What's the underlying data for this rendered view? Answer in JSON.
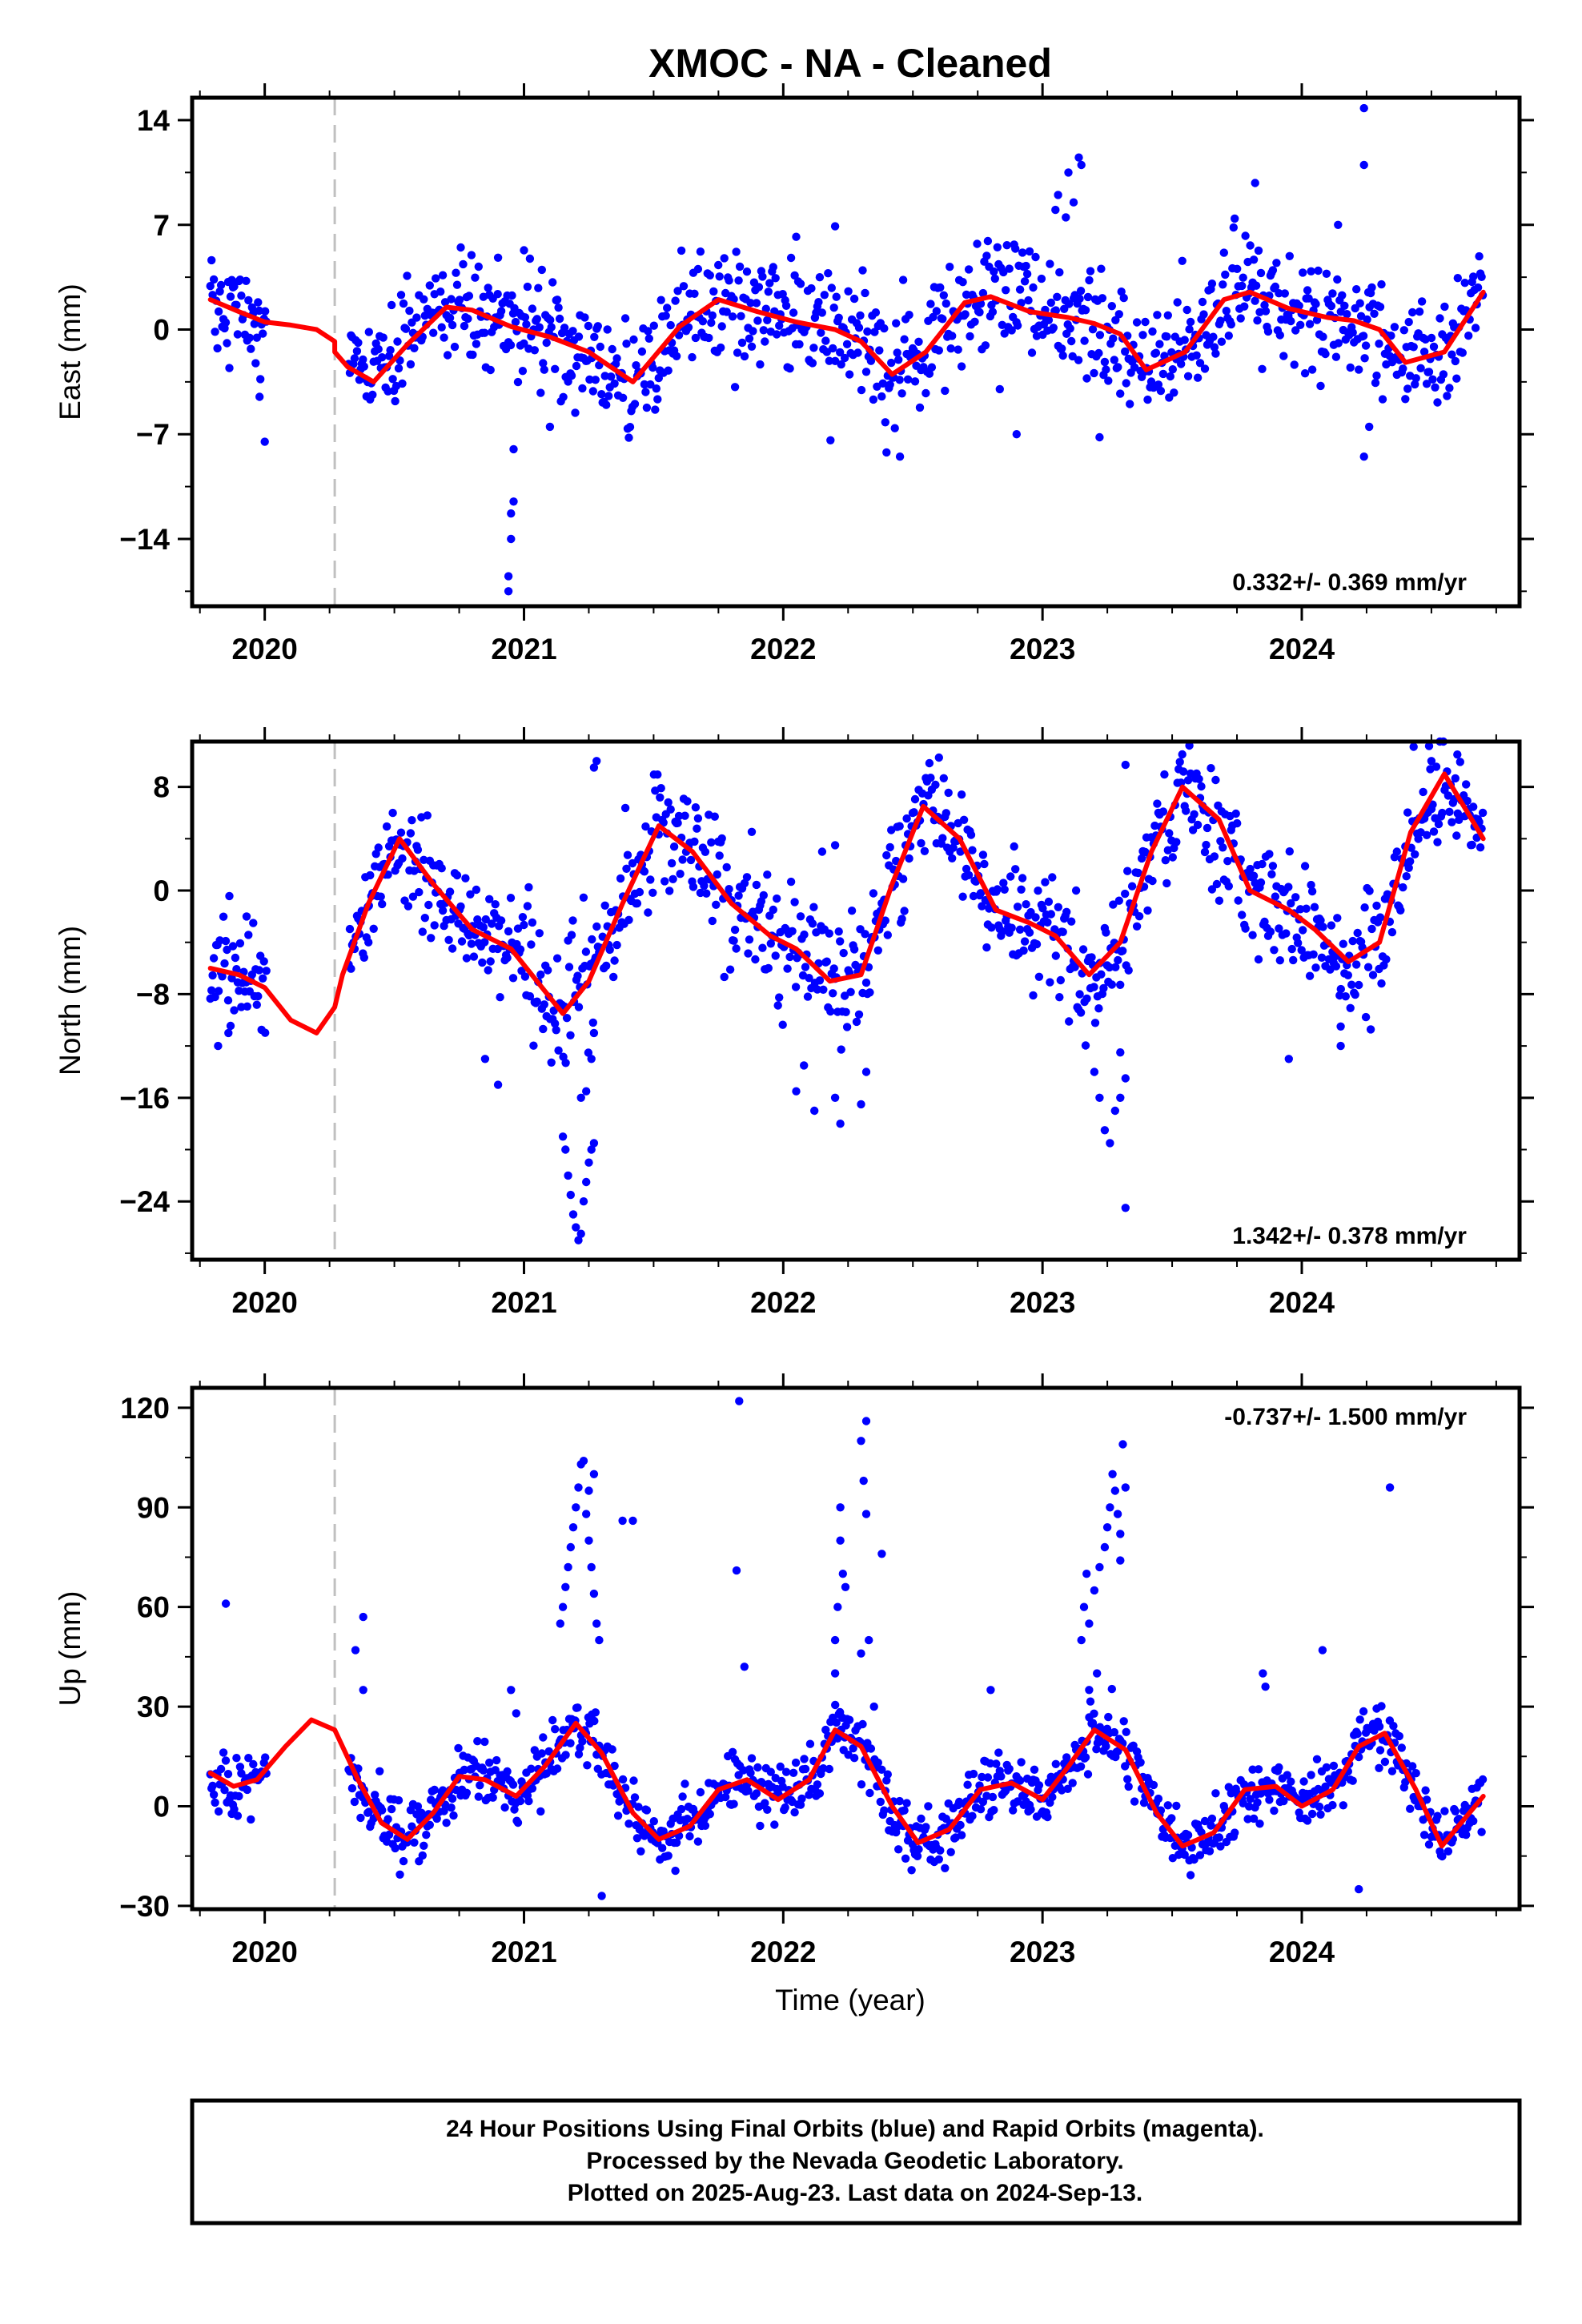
{
  "title": "XMOC  - NA - Cleaned",
  "xlabel": "Time (year)",
  "footer": [
    "24 Hour Positions Using Final Orbits (blue) and Rapid Orbits (magenta).",
    "Processed by the Nevada Geodetic Laboratory.",
    "Plotted on 2025-Aug-23. Last data on 2024-Sep-13."
  ],
  "colors": {
    "points": "#0000ff",
    "fit": "#ff0000",
    "equipment_change": "#c0c0c0",
    "axes": "#000000"
  },
  "chart_data": [
    {
      "type": "scatter",
      "component": "east",
      "ylabel": "East (mm)",
      "rate_label": "0.332+/- 0.369 mm/yr",
      "rate_position": "bottom-right",
      "xlim": [
        2019.72,
        2024.84
      ],
      "ylim": [
        -18.5,
        15.5
      ],
      "xticks": [
        2020,
        2021,
        2022,
        2023,
        2024
      ],
      "xticklabels": [
        "2020",
        "2021",
        "2022",
        "2023",
        "2024"
      ],
      "yticks": [
        14,
        7,
        0,
        -7,
        -14
      ],
      "yticklabels": [
        "14",
        "7",
        "0",
        "-7",
        "-14"
      ],
      "equipment_change": 2020.27,
      "data_start": 2019.79,
      "data_end": 2024.7,
      "gaps": [
        [
          2020.01,
          2020.32
        ]
      ],
      "trend_fit": {
        "x": [
          2019.79,
          2019.9,
          2020.0,
          2020.1,
          2020.2,
          2020.27,
          2020.27,
          2020.32,
          2020.42,
          2020.55,
          2020.7,
          2020.8,
          2020.95,
          2021.1,
          2021.25,
          2021.42,
          2021.6,
          2021.75,
          2021.9,
          2022.05,
          2022.2,
          2022.3,
          2022.42,
          2022.55,
          2022.7,
          2022.8,
          2022.95,
          2023.1,
          2023.2,
          2023.3,
          2023.4,
          2023.55,
          2023.7,
          2023.8,
          2023.95,
          2024.1,
          2024.2,
          2024.3,
          2024.4,
          2024.55,
          2024.7
        ],
        "y": [
          2.0,
          1.2,
          0.5,
          0.3,
          0.0,
          -0.8,
          -1.5,
          -2.5,
          -3.5,
          -1.0,
          1.5,
          1.3,
          0.2,
          -0.5,
          -1.5,
          -3.5,
          0.2,
          2.0,
          1.2,
          0.5,
          0.0,
          -0.8,
          -3.0,
          -1.5,
          1.8,
          2.2,
          1.2,
          0.8,
          0.4,
          -0.3,
          -2.7,
          -1.5,
          2.0,
          2.5,
          1.4,
          0.8,
          0.6,
          0.0,
          -2.2,
          -1.5,
          2.5
        ]
      },
      "anomalies": [
        {
          "x": 2020.0,
          "y": -7.5
        },
        {
          "x": 2019.98,
          "y": -4.5
        },
        {
          "x": 2020.94,
          "y": -17.5
        },
        {
          "x": 2020.94,
          "y": -16.5
        },
        {
          "x": 2020.95,
          "y": -14.0
        },
        {
          "x": 2020.95,
          "y": -12.3
        },
        {
          "x": 2020.96,
          "y": -11.5
        },
        {
          "x": 2020.96,
          "y": -8.0
        },
        {
          "x": 2021.0,
          "y": 5.3
        },
        {
          "x": 2020.9,
          "y": 4.8
        },
        {
          "x": 2021.1,
          "y": -6.5
        },
        {
          "x": 2022.05,
          "y": 6.2
        },
        {
          "x": 2022.2,
          "y": 6.9
        },
        {
          "x": 2022.45,
          "y": -8.5
        },
        {
          "x": 2023.05,
          "y": 8.0
        },
        {
          "x": 2023.06,
          "y": 9.0
        },
        {
          "x": 2023.1,
          "y": 10.5
        },
        {
          "x": 2023.14,
          "y": 11.5
        },
        {
          "x": 2023.15,
          "y": 11.0
        },
        {
          "x": 2023.09,
          "y": 7.5
        },
        {
          "x": 2023.12,
          "y": 8.5
        },
        {
          "x": 2022.9,
          "y": -7.0
        },
        {
          "x": 2023.22,
          "y": -7.2
        },
        {
          "x": 2023.82,
          "y": 9.8
        },
        {
          "x": 2024.24,
          "y": 14.8
        },
        {
          "x": 2024.24,
          "y": 11.0
        },
        {
          "x": 2024.14,
          "y": 7.0
        },
        {
          "x": 2024.24,
          "y": -8.5
        },
        {
          "x": 2024.26,
          "y": -6.5
        }
      ]
    },
    {
      "type": "scatter",
      "component": "north",
      "ylabel": "North (mm)",
      "rate_label": "1.342+/- 0.378 mm/yr",
      "rate_position": "bottom-right",
      "xlim": [
        2019.72,
        2024.84
      ],
      "ylim": [
        -28.5,
        11.5
      ],
      "xticks": [
        2020,
        2021,
        2022,
        2023,
        2024
      ],
      "xticklabels": [
        "2020",
        "2021",
        "2022",
        "2023",
        "2024"
      ],
      "yticks": [
        8,
        0,
        -8,
        -16,
        -24
      ],
      "yticklabels": [
        "8",
        "0",
        "-8",
        "-16",
        "-24"
      ],
      "equipment_change": 2020.27,
      "data_start": 2019.79,
      "data_end": 2024.7,
      "gaps": [
        [
          2020.01,
          2020.32
        ]
      ],
      "trend_fit": {
        "x": [
          2019.79,
          2019.9,
          2020.0,
          2020.1,
          2020.2,
          2020.27,
          2020.3,
          2020.4,
          2020.52,
          2020.65,
          2020.8,
          2020.95,
          2021.05,
          2021.15,
          2021.25,
          2021.38,
          2021.52,
          2021.65,
          2021.8,
          2021.95,
          2022.05,
          2022.18,
          2022.3,
          2022.42,
          2022.54,
          2022.68,
          2022.82,
          2022.95,
          2023.05,
          2023.18,
          2023.3,
          2023.42,
          2023.54,
          2023.68,
          2023.8,
          2023.95,
          2024.05,
          2024.18,
          2024.3,
          2024.42,
          2024.55,
          2024.7
        ],
        "y": [
          -6.0,
          -6.5,
          -7.5,
          -10.0,
          -11.0,
          -9.0,
          -6.5,
          -1.0,
          4.0,
          0.5,
          -3.0,
          -4.5,
          -7.0,
          -9.5,
          -7.0,
          -1.0,
          5.0,
          3.0,
          -1.0,
          -3.5,
          -4.5,
          -7.0,
          -6.5,
          0.5,
          6.5,
          4.0,
          -1.5,
          -2.5,
          -3.5,
          -6.5,
          -4.0,
          3.0,
          8.0,
          5.5,
          0.0,
          -1.5,
          -3.0,
          -5.5,
          -4.0,
          4.5,
          9.0,
          4.0
        ]
      },
      "anomalies": [
        {
          "x": 2019.82,
          "y": -12.0
        },
        {
          "x": 2019.86,
          "y": -11.0
        },
        {
          "x": 2019.93,
          "y": -2.0
        },
        {
          "x": 2020.4,
          "y": -4.0
        },
        {
          "x": 2020.9,
          "y": -15.0
        },
        {
          "x": 2020.85,
          "y": -13.0
        },
        {
          "x": 2021.15,
          "y": -19.0
        },
        {
          "x": 2021.16,
          "y": -20.0
        },
        {
          "x": 2021.17,
          "y": -22.0
        },
        {
          "x": 2021.18,
          "y": -23.5
        },
        {
          "x": 2021.19,
          "y": -25.0
        },
        {
          "x": 2021.2,
          "y": -26.0
        },
        {
          "x": 2021.21,
          "y": -27.0
        },
        {
          "x": 2021.22,
          "y": -26.5
        },
        {
          "x": 2021.23,
          "y": -24.0
        },
        {
          "x": 2021.24,
          "y": -22.5
        },
        {
          "x": 2021.25,
          "y": -21.0
        },
        {
          "x": 2021.26,
          "y": -20.0
        },
        {
          "x": 2021.27,
          "y": -19.5
        },
        {
          "x": 2021.22,
          "y": -16.0
        },
        {
          "x": 2021.24,
          "y": -15.5
        },
        {
          "x": 2021.28,
          "y": 10.0
        },
        {
          "x": 2021.27,
          "y": 9.5
        },
        {
          "x": 2021.26,
          "y": -13.0
        },
        {
          "x": 2021.27,
          "y": -11.0
        },
        {
          "x": 2022.05,
          "y": -15.5
        },
        {
          "x": 2022.08,
          "y": -13.5
        },
        {
          "x": 2022.12,
          "y": -17.0
        },
        {
          "x": 2022.22,
          "y": -18.0
        },
        {
          "x": 2022.2,
          "y": -16.0
        },
        {
          "x": 2022.3,
          "y": -16.5
        },
        {
          "x": 2022.32,
          "y": -14.0
        },
        {
          "x": 2022.2,
          "y": 3.5
        },
        {
          "x": 2022.15,
          "y": 3.0
        },
        {
          "x": 2023.2,
          "y": -14.0
        },
        {
          "x": 2023.22,
          "y": -16.0
        },
        {
          "x": 2023.24,
          "y": -18.5
        },
        {
          "x": 2023.26,
          "y": -19.5
        },
        {
          "x": 2023.28,
          "y": -17.0
        },
        {
          "x": 2023.3,
          "y": -16.0
        },
        {
          "x": 2023.32,
          "y": -14.5
        },
        {
          "x": 2023.3,
          "y": -12.5
        },
        {
          "x": 2023.32,
          "y": -24.5
        },
        {
          "x": 2023.32,
          "y": 9.7
        },
        {
          "x": 2023.95,
          "y": -13.0
        },
        {
          "x": 2024.15,
          "y": -12.0
        },
        {
          "x": 2024.15,
          "y": -10.5
        },
        {
          "x": 2024.5,
          "y": 10.0
        },
        {
          "x": 2024.6,
          "y": 10.5
        }
      ]
    },
    {
      "type": "scatter",
      "component": "up",
      "ylabel": "Up (mm)",
      "rate_label": "-0.737+/- 1.500 mm/yr",
      "rate_position": "top-right",
      "xlim": [
        2019.72,
        2024.84
      ],
      "ylim": [
        -31,
        126
      ],
      "xticks": [
        2020,
        2021,
        2022,
        2023,
        2024
      ],
      "xticklabels": [
        "2020",
        "2021",
        "2022",
        "2023",
        "2024"
      ],
      "yticks": [
        120,
        90,
        60,
        30,
        0,
        -30
      ],
      "yticklabels": [
        "120",
        "90",
        "60",
        "30",
        "0",
        "-30"
      ],
      "equipment_change": 2020.27,
      "data_start": 2019.79,
      "data_end": 2024.7,
      "gaps": [
        [
          2020.01,
          2020.32
        ]
      ],
      "trend_fit": {
        "x": [
          2019.79,
          2019.88,
          2019.97,
          2020.08,
          2020.18,
          2020.27,
          2020.36,
          2020.45,
          2020.55,
          2020.65,
          2020.75,
          2020.85,
          2020.97,
          2021.08,
          2021.2,
          2021.3,
          2021.42,
          2021.52,
          2021.64,
          2021.75,
          2021.86,
          2021.98,
          2022.1,
          2022.2,
          2022.3,
          2022.42,
          2022.52,
          2022.64,
          2022.76,
          2022.88,
          2023.0,
          2023.1,
          2023.2,
          2023.32,
          2023.44,
          2023.54,
          2023.66,
          2023.78,
          2023.9,
          2024.0,
          2024.12,
          2024.22,
          2024.32,
          2024.44,
          2024.54,
          2024.7
        ],
        "y": [
          10.0,
          6.0,
          8.0,
          18.0,
          26.0,
          23.0,
          8.0,
          -5.0,
          -10.0,
          -2.0,
          9.0,
          8.0,
          3.0,
          12.0,
          25.0,
          16.0,
          -2.0,
          -10.0,
          -6.0,
          5.0,
          8.0,
          2.0,
          8.0,
          23.0,
          18.0,
          0.0,
          -11.0,
          -7.0,
          5.0,
          7.0,
          2.0,
          12.0,
          23.0,
          17.0,
          -2.0,
          -12.0,
          -8.0,
          5.0,
          6.0,
          0.0,
          5.0,
          18.0,
          22.0,
          5.0,
          -12.0,
          3.0
        ]
      },
      "anomalies": [
        {
          "x": 2019.85,
          "y": 61.0
        },
        {
          "x": 2020.35,
          "y": 47.0
        },
        {
          "x": 2020.38,
          "y": 57.0
        },
        {
          "x": 2020.38,
          "y": 35.0
        },
        {
          "x": 2020.95,
          "y": 35.0
        },
        {
          "x": 2020.97,
          "y": 28.0
        },
        {
          "x": 2021.15,
          "y": 60.0
        },
        {
          "x": 2021.16,
          "y": 66.0
        },
        {
          "x": 2021.17,
          "y": 72.0
        },
        {
          "x": 2021.18,
          "y": 78.0
        },
        {
          "x": 2021.19,
          "y": 84.0
        },
        {
          "x": 2021.2,
          "y": 90.0
        },
        {
          "x": 2021.21,
          "y": 96.0
        },
        {
          "x": 2021.22,
          "y": 103.0
        },
        {
          "x": 2021.23,
          "y": 104.0
        },
        {
          "x": 2021.24,
          "y": 88.0
        },
        {
          "x": 2021.25,
          "y": 80.0
        },
        {
          "x": 2021.26,
          "y": 72.0
        },
        {
          "x": 2021.27,
          "y": 64.0
        },
        {
          "x": 2021.28,
          "y": 55.0
        },
        {
          "x": 2021.29,
          "y": 50.0
        },
        {
          "x": 2021.27,
          "y": 100.0
        },
        {
          "x": 2021.25,
          "y": 95.0
        },
        {
          "x": 2021.14,
          "y": 55.0
        },
        {
          "x": 2021.38,
          "y": 86.0
        },
        {
          "x": 2021.42,
          "y": 86.0
        },
        {
          "x": 2021.3,
          "y": -27.0
        },
        {
          "x": 2021.83,
          "y": 122.0
        },
        {
          "x": 2021.82,
          "y": 71.0
        },
        {
          "x": 2021.85,
          "y": 42.0
        },
        {
          "x": 2022.2,
          "y": 50.0
        },
        {
          "x": 2022.21,
          "y": 60.0
        },
        {
          "x": 2022.22,
          "y": 80.0
        },
        {
          "x": 2022.22,
          "y": 90.0
        },
        {
          "x": 2022.23,
          "y": 70.0
        },
        {
          "x": 2022.24,
          "y": 66.0
        },
        {
          "x": 2022.2,
          "y": 40.0
        },
        {
          "x": 2022.3,
          "y": 110.0
        },
        {
          "x": 2022.32,
          "y": 116.0
        },
        {
          "x": 2022.31,
          "y": 98.0
        },
        {
          "x": 2022.32,
          "y": 88.0
        },
        {
          "x": 2022.33,
          "y": 50.0
        },
        {
          "x": 2022.35,
          "y": 30.0
        },
        {
          "x": 2022.38,
          "y": 76.0
        },
        {
          "x": 2022.3,
          "y": 46.0
        },
        {
          "x": 2022.8,
          "y": 35.0
        },
        {
          "x": 2023.15,
          "y": 50.0
        },
        {
          "x": 2023.16,
          "y": 60.0
        },
        {
          "x": 2023.17,
          "y": 70.0
        },
        {
          "x": 2023.18,
          "y": 55.0
        },
        {
          "x": 2023.2,
          "y": 65.0
        },
        {
          "x": 2023.22,
          "y": 72.0
        },
        {
          "x": 2023.24,
          "y": 78.0
        },
        {
          "x": 2023.25,
          "y": 84.0
        },
        {
          "x": 2023.26,
          "y": 90.0
        },
        {
          "x": 2023.27,
          "y": 100.0
        },
        {
          "x": 2023.28,
          "y": 95.0
        },
        {
          "x": 2023.29,
          "y": 88.0
        },
        {
          "x": 2023.3,
          "y": 82.0
        },
        {
          "x": 2023.31,
          "y": 109.0
        },
        {
          "x": 2023.32,
          "y": 96.0
        },
        {
          "x": 2023.3,
          "y": 74.0
        },
        {
          "x": 2023.21,
          "y": 40.0
        },
        {
          "x": 2023.18,
          "y": 35.0
        },
        {
          "x": 2023.85,
          "y": 40.0
        },
        {
          "x": 2023.86,
          "y": 36.0
        },
        {
          "x": 2024.08,
          "y": 47.0
        },
        {
          "x": 2024.34,
          "y": 96.0
        },
        {
          "x": 2024.3,
          "y": 24.0
        },
        {
          "x": 2024.22,
          "y": -25.0
        }
      ]
    }
  ]
}
